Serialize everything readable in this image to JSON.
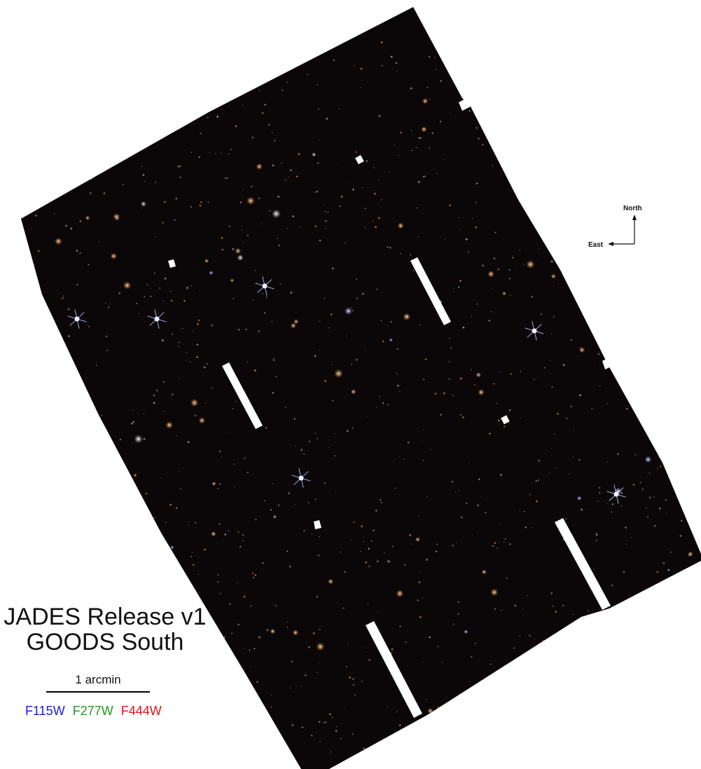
{
  "title_line1": "JADES Release v1",
  "title_line2": "GOODS South",
  "scale_label": "1 arcmin",
  "filters": [
    {
      "label": "F115W",
      "color": "#1a1ae6"
    },
    {
      "label": "F277W",
      "color": "#1e9a1e"
    },
    {
      "label": "F444W",
      "color": "#e61414"
    }
  ],
  "compass": {
    "north": "North",
    "east": "East"
  },
  "background_color": "#ffffff",
  "field_color": "#0b0608"
}
